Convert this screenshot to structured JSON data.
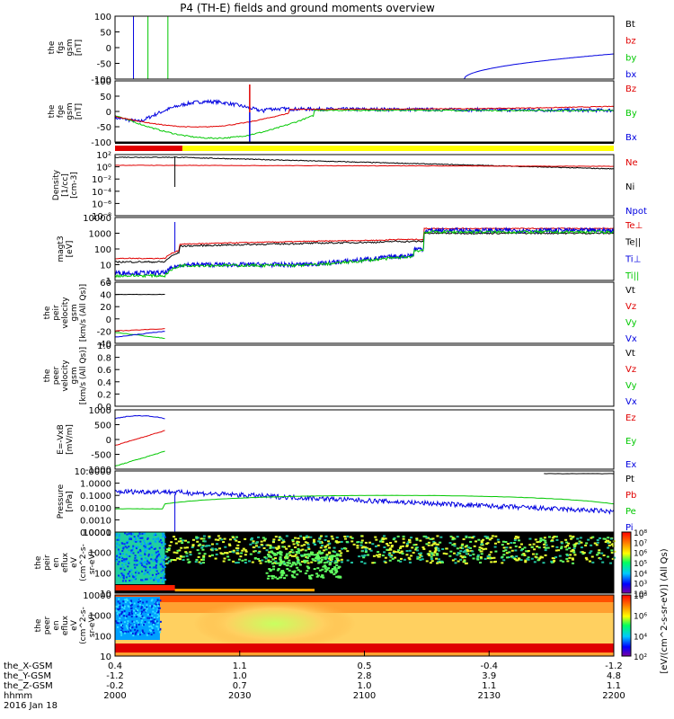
{
  "title": "P4 (TH-E) fields and ground moments overview",
  "colors": {
    "black": "#000000",
    "red": "#e00000",
    "green": "#00c800",
    "blue": "#0000e0",
    "yellow": "#ffff00"
  },
  "chart_data": [
    {
      "type": "line",
      "id": "fgs",
      "ylabel_lines": [
        "the",
        "fgs",
        "gsm",
        "[nT]"
      ],
      "ylim": [
        -100,
        100
      ],
      "yticks": [
        "100",
        "50",
        "0",
        "-50",
        "-100"
      ],
      "series": [
        {
          "name": "Bt",
          "color": "black"
        },
        {
          "name": "bz",
          "color": "red"
        },
        {
          "name": "by",
          "color": "green"
        },
        {
          "name": "bx",
          "color": "blue"
        }
      ]
    },
    {
      "type": "line",
      "id": "fge",
      "ylabel_lines": [
        "the",
        "fge",
        "gsm",
        "[nT]"
      ],
      "ylim": [
        -120,
        120
      ],
      "yticks": [
        "100",
        "50",
        "0",
        "-50",
        "-100"
      ],
      "series": [
        {
          "name": "Bz",
          "color": "red"
        },
        {
          "name": "By",
          "color": "green"
        },
        {
          "name": "Bx",
          "color": "blue"
        }
      ]
    },
    {
      "type": "line",
      "id": "density",
      "ylabel_lines": [
        "Density",
        "[1/cc]",
        "[cm-3]"
      ],
      "ylim": [
        1e-09,
        1000.0
      ],
      "log": true,
      "yticks": [
        "10²",
        "10⁰",
        "10⁻²",
        "10⁻⁴",
        "10⁻⁶",
        "10⁻⁸"
      ],
      "series": [
        {
          "name": "Ne",
          "color": "red"
        },
        {
          "name": "Ni",
          "color": "black"
        },
        {
          "name": "Npot",
          "color": "blue"
        }
      ]
    },
    {
      "type": "line",
      "id": "temp",
      "ylabel_lines": [
        "magt3",
        "[eV]"
      ],
      "ylim": [
        1,
        10000
      ],
      "log": true,
      "yticks": [
        "10000",
        "1000",
        "100",
        "10",
        "1"
      ],
      "series": [
        {
          "name": "Te⊥",
          "color": "red"
        },
        {
          "name": "Te||",
          "color": "black"
        },
        {
          "name": "Ti⊥",
          "color": "blue"
        },
        {
          "name": "Ti||",
          "color": "green"
        }
      ]
    },
    {
      "type": "line",
      "id": "peir_vel",
      "ylabel_lines": [
        "the",
        "peir",
        "velocity",
        "gsm",
        "[km/s (All Qs)]"
      ],
      "ylim": [
        -40,
        60
      ],
      "yticks": [
        "60",
        "40",
        "20",
        "0",
        "-20",
        "-40"
      ],
      "series": [
        {
          "name": "Vt",
          "color": "black"
        },
        {
          "name": "Vz",
          "color": "red"
        },
        {
          "name": "Vy",
          "color": "green"
        },
        {
          "name": "Vx",
          "color": "blue"
        }
      ]
    },
    {
      "type": "line",
      "id": "peer_vel",
      "ylabel_lines": [
        "the",
        "peer",
        "velocity",
        "gsm",
        "[km/s (All Qs)]"
      ],
      "ylim": [
        0,
        1
      ],
      "yticks": [
        "1.0",
        "0.8",
        "0.6",
        "0.4",
        "0.2",
        "0.0"
      ],
      "series": [
        {
          "name": "Vt",
          "color": "black"
        },
        {
          "name": "Vz",
          "color": "red"
        },
        {
          "name": "Vy",
          "color": "green"
        },
        {
          "name": "Vx",
          "color": "blue"
        }
      ]
    },
    {
      "type": "line",
      "id": "efield",
      "ylabel_lines": [
        "E=-VxB",
        "[mV/m]"
      ],
      "ylim": [
        -1000,
        1000
      ],
      "yticks": [
        "1000",
        "500",
        "0",
        "-500",
        "-1000"
      ],
      "series": [
        {
          "name": "Ez",
          "color": "red"
        },
        {
          "name": "Ey",
          "color": "green"
        },
        {
          "name": "Ex",
          "color": "blue"
        }
      ]
    },
    {
      "type": "line",
      "id": "pressure",
      "ylabel_lines": [
        "Pressure",
        "[nPa]"
      ],
      "ylim": [
        0.0001,
        10
      ],
      "log": true,
      "yticks": [
        "10.0000",
        "1.0000",
        "0.1000",
        "0.0100",
        "0.0010",
        "0.0001"
      ],
      "series": [
        {
          "name": "Pt",
          "color": "black"
        },
        {
          "name": "Pb",
          "color": "red"
        },
        {
          "name": "Pe",
          "color": "green"
        },
        {
          "name": "Pi",
          "color": "blue"
        }
      ]
    },
    {
      "type": "heatmap",
      "id": "peir_spec",
      "ylabel_lines": [
        "the",
        "peir",
        "en",
        "eflux",
        "eV",
        "(cm^2-s-",
        "sr-eV)"
      ],
      "yticks": [
        "10000",
        "1000",
        "100",
        "10"
      ]
    },
    {
      "type": "heatmap",
      "id": "peer_spec",
      "ylabel_lines": [
        "the",
        "peer",
        "en",
        "eflux",
        "eV",
        "(cm^2-s-",
        "sr-eV)"
      ],
      "yticks": [
        "10000",
        "1000",
        "100",
        "10"
      ]
    }
  ],
  "colorbar": {
    "label": "[eV/(cm^2-s-sr-eV)] (All Qs)",
    "upper_ticks": [
      "10⁸",
      "10⁷",
      "10⁶",
      "10⁵",
      "10⁴",
      "10³",
      "10²"
    ],
    "lower_ticks": [
      "10⁸",
      "10⁶",
      "10⁴",
      "10²"
    ]
  },
  "xaxis": {
    "row_labels": [
      "the_X-GSM",
      "the_Y-GSM",
      "the_Z-GSM",
      "hhmm",
      "2016 Jan 18"
    ],
    "ticks": [
      {
        "rows": [
          "0.4",
          "-1.2",
          "-0.2",
          "2000"
        ]
      },
      {
        "rows": [
          "1.1",
          "1.0",
          "0.7",
          "2030"
        ]
      },
      {
        "rows": [
          "0.5",
          "2.8",
          "1.0",
          "2100"
        ]
      },
      {
        "rows": [
          "-0.4",
          "3.9",
          "1.1",
          "2130"
        ]
      },
      {
        "rows": [
          "-1.2",
          "4.8",
          "1.1",
          "2200"
        ]
      }
    ]
  }
}
